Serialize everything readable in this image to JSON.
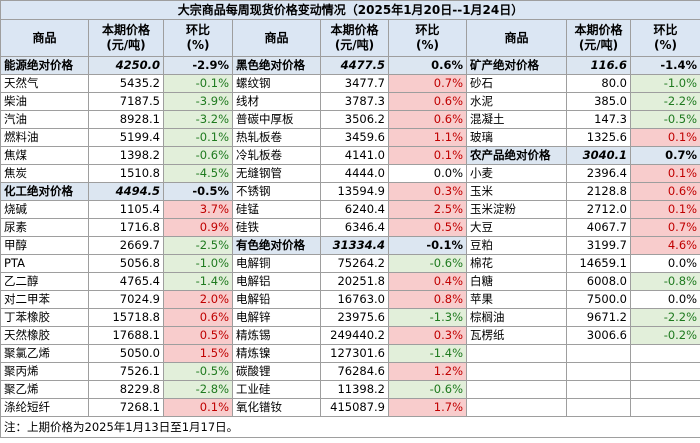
{
  "title": "大宗商品每周现货价格变动情况（2025年1月20日--1月24日）",
  "headers": {
    "name": "商品",
    "price": [
      "本期价格",
      "(元/吨)"
    ],
    "change": [
      "环比",
      "(%)"
    ]
  },
  "rows": [
    [
      {
        "name": "能源绝对价格",
        "price": "4250.0",
        "change": "-2.9%",
        "summary": true
      },
      {
        "name": "黑色绝对价格",
        "price": "4477.5",
        "change": "0.6%",
        "summary": true
      },
      {
        "name": "矿产绝对价格",
        "price": "116.6",
        "change": "-1.4%",
        "summary": true
      }
    ],
    [
      {
        "name": "天然气",
        "price": "5435.2",
        "change": "-0.1%"
      },
      {
        "name": "螺纹钢",
        "price": "3477.7",
        "change": "0.7%"
      },
      {
        "name": "砂石",
        "price": "80.0",
        "change": "-1.0%"
      }
    ],
    [
      {
        "name": "柴油",
        "price": "7187.5",
        "change": "-3.9%"
      },
      {
        "name": "线材",
        "price": "3787.3",
        "change": "0.6%"
      },
      {
        "name": "水泥",
        "price": "385.0",
        "change": "-2.2%"
      }
    ],
    [
      {
        "name": "汽油",
        "price": "8928.1",
        "change": "-3.2%"
      },
      {
        "name": "普碳中厚板",
        "price": "3506.2",
        "change": "0.6%"
      },
      {
        "name": "混凝土",
        "price": "147.3",
        "change": "-0.5%"
      }
    ],
    [
      {
        "name": "燃料油",
        "price": "5199.4",
        "change": "-0.1%"
      },
      {
        "name": "热轧板卷",
        "price": "3459.6",
        "change": "1.1%"
      },
      {
        "name": "玻璃",
        "price": "1325.6",
        "change": "0.1%"
      }
    ],
    [
      {
        "name": "焦煤",
        "price": "1398.2",
        "change": "-0.6%"
      },
      {
        "name": "冷轧板卷",
        "price": "4141.0",
        "change": "0.1%"
      },
      {
        "name": "农产品绝对价格",
        "price": "3040.1",
        "change": "0.7%",
        "summary": true
      }
    ],
    [
      {
        "name": "焦炭",
        "price": "1510.8",
        "change": "-4.5%"
      },
      {
        "name": "无缝钢管",
        "price": "4444.0",
        "change": "0.0%"
      },
      {
        "name": "小麦",
        "price": "2396.4",
        "change": "0.1%"
      }
    ],
    [
      {
        "name": "化工绝对价格",
        "price": "4494.5",
        "change": "-0.5%",
        "summary": true
      },
      {
        "name": "不锈钢",
        "price": "13594.9",
        "change": "0.3%"
      },
      {
        "name": "玉米",
        "price": "2128.8",
        "change": "0.6%"
      }
    ],
    [
      {
        "name": "烧碱",
        "price": "1105.4",
        "change": "3.7%"
      },
      {
        "name": "硅锰",
        "price": "6240.4",
        "change": "2.5%"
      },
      {
        "name": "玉米淀粉",
        "price": "2712.0",
        "change": "0.1%"
      }
    ],
    [
      {
        "name": "尿素",
        "price": "1716.8",
        "change": "0.9%"
      },
      {
        "name": "硅铁",
        "price": "6346.4",
        "change": "0.5%"
      },
      {
        "name": "大豆",
        "price": "4067.7",
        "change": "0.7%"
      }
    ],
    [
      {
        "name": "甲醇",
        "price": "2669.7",
        "change": "-2.5%"
      },
      {
        "name": "有色绝对价格",
        "price": "31334.4",
        "change": "-0.1%",
        "summary": true
      },
      {
        "name": "豆粕",
        "price": "3199.7",
        "change": "4.6%"
      }
    ],
    [
      {
        "name": "PTA",
        "price": "5056.8",
        "change": "-1.0%"
      },
      {
        "name": "电解铜",
        "price": "75264.2",
        "change": "-0.6%"
      },
      {
        "name": "棉花",
        "price": "14659.1",
        "change": "0.0%"
      }
    ],
    [
      {
        "name": "乙二醇",
        "price": "4765.4",
        "change": "-1.4%"
      },
      {
        "name": "电解铝",
        "price": "20251.8",
        "change": "0.4%"
      },
      {
        "name": "白糖",
        "price": "6008.0",
        "change": "-0.8%"
      }
    ],
    [
      {
        "name": "对二甲苯",
        "price": "7024.9",
        "change": "2.0%"
      },
      {
        "name": "电解铅",
        "price": "16763.0",
        "change": "0.8%"
      },
      {
        "name": "苹果",
        "price": "7500.0",
        "change": "0.0%"
      }
    ],
    [
      {
        "name": "丁苯橡胶",
        "price": "15718.8",
        "change": "0.6%"
      },
      {
        "name": "电解锌",
        "price": "23975.6",
        "change": "-1.3%"
      },
      {
        "name": "棕榈油",
        "price": "9671.2",
        "change": "-2.2%"
      }
    ],
    [
      {
        "name": "天然橡胶",
        "price": "17688.1",
        "change": "0.5%"
      },
      {
        "name": "精炼锡",
        "price": "249440.2",
        "change": "0.3%"
      },
      {
        "name": "瓦楞纸",
        "price": "3006.6",
        "change": "-0.2%"
      }
    ],
    [
      {
        "name": "聚氯乙烯",
        "price": "5050.0",
        "change": "1.5%"
      },
      {
        "name": "精炼镍",
        "price": "127301.6",
        "change": "-1.4%"
      },
      null
    ],
    [
      {
        "name": "聚丙烯",
        "price": "7526.1",
        "change": "-0.5%"
      },
      {
        "name": "碳酸锂",
        "price": "76284.6",
        "change": "1.2%"
      },
      null
    ],
    [
      {
        "name": "聚乙烯",
        "price": "8229.8",
        "change": "-2.8%"
      },
      {
        "name": "工业硅",
        "price": "11398.2",
        "change": "-0.6%"
      },
      null
    ],
    [
      {
        "name": "涤纶短纤",
        "price": "7268.1",
        "change": "0.1%"
      },
      {
        "name": "氧化镨钕",
        "price": "415087.9",
        "change": "1.7%"
      },
      null
    ]
  ],
  "note": "注：上期价格为2025年1月13日至1月17日。"
}
